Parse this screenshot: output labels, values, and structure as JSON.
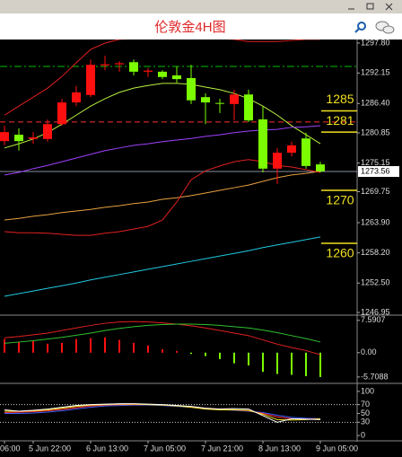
{
  "chart_data": [
    {
      "type": "candlestick",
      "title": "伦敦金4H图",
      "categories": [
        "06:00",
        null,
        "5 Jun 22:00",
        null,
        null,
        null,
        "6 Jun 13:00",
        null,
        null,
        null,
        "7 Jun 05:00",
        null,
        null,
        null,
        "7 Jun 21:00",
        null,
        null,
        null,
        "8 Jun 13:00",
        null,
        null,
        null,
        "9 Jun 05:00"
      ],
      "open": [
        1279.3,
        1280.5,
        1279.7,
        1279.7,
        1282.5,
        1286.6,
        1288.0,
        1293.6,
        1293.8,
        1294.2,
        1292.4,
        1292.4,
        1291.7,
        1291.2,
        1287.6,
        1286.5,
        1286.3,
        1288.1,
        1283.4,
        1274.1,
        1277.1,
        1279.8,
        1274.9
      ],
      "high": [
        1282.2,
        1281.7,
        1281.0,
        1283.4,
        1287.3,
        1289.7,
        1294.7,
        1295.4,
        1294.4,
        1294.7,
        1293.1,
        1292.7,
        1293.4,
        1293.7,
        1288.3,
        1287.3,
        1289.0,
        1289.0,
        1285.9,
        1278.0,
        1279.2,
        1280.9,
        1275.4
      ],
      "low": [
        1278.5,
        1277.5,
        1278.8,
        1279.2,
        1282.2,
        1285.9,
        1287.6,
        1292.7,
        1292.4,
        1291.7,
        1291.4,
        1291.0,
        1290.3,
        1286.3,
        1282.5,
        1284.6,
        1283.2,
        1282.9,
        1273.4,
        1271.2,
        1276.4,
        1274.1,
        1273.4
      ],
      "close": [
        1281.0,
        1279.3,
        1280.0,
        1282.5,
        1286.6,
        1288.5,
        1293.7,
        1293.8,
        1294.0,
        1292.4,
        1292.6,
        1291.4,
        1291.0,
        1287.0,
        1286.6,
        1286.4,
        1288.1,
        1283.2,
        1274.1,
        1277.1,
        1278.5,
        1274.6,
        1273.6
      ],
      "up_color": "#ff1010",
      "down_color": "#7cfc00",
      "series": [
        {
          "color": "#e02020",
          "values": [
            1284.2,
            1285.9,
            1287.6,
            1289.3,
            1291.5,
            1294.1,
            1296.6,
            1297.8,
            1298.5,
            1298.6,
            1298.6,
            1298.6,
            1298.6,
            1298.6,
            1298.6,
            1298.6,
            1298.5,
            1298.1,
            1298.1,
            1298.1,
            1298.3,
            1298.5,
            1298.5
          ]
        },
        {
          "color": "#b8f040",
          "values": [
            1278.0,
            1278.8,
            1279.7,
            1280.9,
            1282.5,
            1284.2,
            1285.9,
            1287.3,
            1288.5,
            1289.3,
            1289.8,
            1290.2,
            1290.2,
            1290.0,
            1289.5,
            1289.0,
            1288.3,
            1287.3,
            1285.9,
            1284.2,
            1282.2,
            1280.5,
            1278.8
          ]
        },
        {
          "color": "#a040ff",
          "values": [
            1272.9,
            1273.4,
            1274.1,
            1274.7,
            1275.4,
            1276.1,
            1276.8,
            1277.5,
            1278.0,
            1278.5,
            1278.8,
            1279.2,
            1279.5,
            1279.8,
            1280.2,
            1280.5,
            1280.9,
            1281.2,
            1281.4,
            1281.5,
            1281.9,
            1282.0,
            1282.2
          ]
        },
        {
          "color": "#e8a040",
          "values": [
            1264.4,
            1264.7,
            1265.1,
            1265.4,
            1265.8,
            1266.1,
            1266.4,
            1266.8,
            1267.1,
            1267.5,
            1267.8,
            1268.3,
            1268.6,
            1269.0,
            1269.5,
            1270.0,
            1270.5,
            1271.0,
            1271.7,
            1272.4,
            1272.9,
            1273.2,
            1273.6
          ]
        },
        {
          "color": "#e02020",
          "values": [
            1262.2,
            1262.0,
            1262.0,
            1261.9,
            1261.7,
            1261.5,
            1261.5,
            1261.9,
            1262.2,
            1262.7,
            1263.2,
            1264.4,
            1267.8,
            1272.0,
            1273.7,
            1274.6,
            1275.4,
            1275.8,
            1275.4,
            1274.7,
            1274.4,
            1273.9,
            1273.4
          ]
        },
        {
          "color": "#20c8e0",
          "values": [
            1250.0,
            1250.5,
            1251.0,
            1251.5,
            1252.0,
            1252.5,
            1253.1,
            1253.6,
            1254.1,
            1254.6,
            1255.1,
            1255.6,
            1256.1,
            1256.6,
            1257.1,
            1257.6,
            1258.1,
            1258.6,
            1259.2,
            1259.7,
            1260.2,
            1260.7,
            1261.2
          ]
        }
      ],
      "ylim": [
        1246.61,
        1298.48
      ],
      "yticks": [
        {
          "value": 1297.8,
          "label": "1297.80"
        },
        1292.15,
        {
          "value": 1286.4,
          "label": "1286.40"
        },
        1280.85,
        1275.15,
        1269.75,
        {
          "value": 1263.9,
          "label": "1263.90"
        },
        {
          "value": 1258.2,
          "label": "1258.20"
        },
        {
          "value": 1252.5,
          "label": "1252.50"
        },
        1246.95
      ],
      "last_price": 1273.56,
      "levels": [
        1285,
        1281,
        1270,
        1260
      ],
      "level_color": "#f0e020",
      "dashed_levels": [
        {
          "value": 1282.9,
          "color": "#ff3030",
          "style": "dash"
        },
        {
          "value": 1293.4,
          "color": "#00c000",
          "style": "dashdot"
        }
      ]
    },
    {
      "type": "histogram",
      "values": [
        3.2,
        2.5,
        2.7,
        2.1,
        2.3,
        3.2,
        3.4,
        3.6,
        3.0,
        2.3,
        1.7,
        0.8,
        0.4,
        -0.3,
        -0.8,
        -1.5,
        -2.5,
        -3.0,
        -4.5,
        -5.0,
        -5.2,
        -5.5,
        -5.7
      ],
      "positive_color": "#ff1010",
      "negative_color": "#7cfc00",
      "series": [
        {
          "color": "#e02020",
          "values": [
            3.5,
            3.8,
            4.2,
            4.6,
            5.2,
            5.8,
            6.4,
            6.9,
            7.2,
            7.3,
            7.2,
            7.0,
            6.7,
            6.3,
            5.8,
            5.2,
            4.6,
            4.0,
            3.0,
            2.0,
            1.2,
            0.5,
            -0.5
          ]
        },
        {
          "color": "#30c030",
          "values": [
            2.2,
            2.5,
            2.8,
            3.2,
            3.6,
            4.1,
            4.6,
            5.2,
            5.7,
            6.1,
            6.4,
            6.6,
            6.7,
            6.7,
            6.6,
            6.4,
            6.1,
            5.8,
            5.3,
            4.7,
            4.0,
            3.3,
            2.5
          ]
        }
      ],
      "ylim": [
        -7.0,
        8.6
      ],
      "yticks": [
        7.5907,
        {
          "value": 0,
          "label": "0.00"
        },
        -5.7088
      ]
    },
    {
      "type": "line",
      "series": [
        {
          "color": "#4060ff",
          "values": [
            50,
            50,
            51,
            53,
            56,
            60,
            64,
            67,
            68,
            69,
            69,
            68,
            66,
            64,
            61,
            59,
            57,
            55,
            52,
            46,
            41,
            39,
            38
          ]
        },
        {
          "color": "#ff3030",
          "values": [
            52,
            53,
            54,
            56,
            59,
            63,
            67,
            69,
            70,
            70,
            70,
            69,
            67,
            65,
            62,
            60,
            58,
            56,
            50,
            42,
            38,
            37,
            38
          ]
        },
        {
          "color": "#f0e020",
          "values": [
            55,
            55,
            56,
            58,
            62,
            66,
            69,
            70,
            71,
            71,
            70,
            69,
            67,
            64,
            60,
            58,
            58,
            57,
            48,
            36,
            35,
            36,
            38
          ]
        },
        {
          "color": "#ffffff",
          "values": [
            58,
            55,
            57,
            60,
            64,
            68,
            70,
            71,
            72,
            72,
            71,
            70,
            68,
            66,
            62,
            60,
            61,
            60,
            45,
            30,
            38,
            37,
            36
          ]
        }
      ],
      "ylim": [
        -10,
        114
      ],
      "yticks": [
        100,
        70,
        50,
        30,
        0
      ],
      "levels": [
        70,
        30
      ]
    }
  ]
}
